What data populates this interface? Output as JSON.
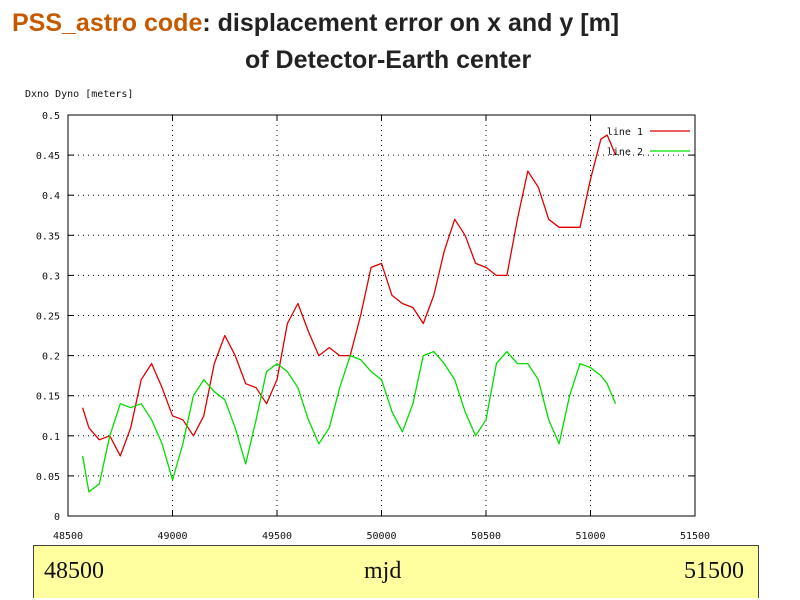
{
  "title": {
    "highlight": "PSS_astro code",
    "rest": ": displacement error  on x and y [m]",
    "line2": "of Detector-Earth center"
  },
  "colors": {
    "title_highlight": "#c65a00",
    "series1": "#e00000",
    "series2": "#00dd00",
    "footer_bg": "#ffffa0"
  },
  "footer": {
    "left": "48500",
    "center": "mjd",
    "right": "51500"
  },
  "chart_data": {
    "type": "line",
    "ylabel": "Dxno  Dyno  [meters]",
    "xlim": [
      48500,
      51500
    ],
    "ylim": [
      0,
      0.5
    ],
    "grid": true,
    "legend_position": "top-right",
    "x_ticks": [
      "48500",
      "49000",
      "49500",
      "50000",
      "50500",
      "51000",
      "51500"
    ],
    "y_ticks": [
      "0",
      "0.05",
      "0.1",
      "0.15",
      "0.2",
      "0.25",
      "0.3",
      "0.35",
      "0.4",
      "0.45",
      "0.5"
    ],
    "x_tick_values": [
      48500,
      49000,
      49500,
      50000,
      50500,
      51000,
      51500
    ],
    "y_tick_values": [
      0,
      0.05,
      0.1,
      0.15,
      0.2,
      0.25,
      0.3,
      0.35,
      0.4,
      0.45,
      0.5
    ],
    "x": [
      48570,
      48600,
      48650,
      48700,
      48750,
      48800,
      48850,
      48900,
      48950,
      49000,
      49050,
      49100,
      49150,
      49200,
      49250,
      49300,
      49350,
      49400,
      49450,
      49500,
      49550,
      49600,
      49650,
      49700,
      49750,
      49800,
      49850,
      49900,
      49950,
      50000,
      50050,
      50100,
      50150,
      50200,
      50250,
      50300,
      50350,
      50400,
      50450,
      50500,
      50550,
      50600,
      50650,
      50700,
      50750,
      50800,
      50850,
      50900,
      50950,
      51000,
      51050,
      51080,
      51120
    ],
    "series": [
      {
        "name": "line 1",
        "values": [
          0.135,
          0.11,
          0.095,
          0.1,
          0.075,
          0.11,
          0.17,
          0.19,
          0.16,
          0.125,
          0.12,
          0.1,
          0.125,
          0.19,
          0.225,
          0.2,
          0.165,
          0.16,
          0.14,
          0.17,
          0.24,
          0.265,
          0.23,
          0.2,
          0.21,
          0.2,
          0.2,
          0.25,
          0.31,
          0.315,
          0.275,
          0.265,
          0.26,
          0.24,
          0.275,
          0.33,
          0.37,
          0.35,
          0.315,
          0.31,
          0.3,
          0.3,
          0.37,
          0.43,
          0.41,
          0.37,
          0.36,
          0.36,
          0.36,
          0.42,
          0.47,
          0.475,
          0.45
        ]
      },
      {
        "name": "line 2",
        "values": [
          0.075,
          0.03,
          0.04,
          0.1,
          0.14,
          0.135,
          0.14,
          0.12,
          0.09,
          0.045,
          0.09,
          0.15,
          0.17,
          0.155,
          0.145,
          0.11,
          0.065,
          0.12,
          0.18,
          0.19,
          0.18,
          0.16,
          0.12,
          0.09,
          0.11,
          0.16,
          0.2,
          0.195,
          0.18,
          0.17,
          0.13,
          0.105,
          0.14,
          0.2,
          0.205,
          0.19,
          0.17,
          0.13,
          0.1,
          0.12,
          0.19,
          0.205,
          0.19,
          0.19,
          0.17,
          0.12,
          0.09,
          0.15,
          0.19,
          0.185,
          0.175,
          0.165,
          0.14
        ]
      }
    ]
  }
}
